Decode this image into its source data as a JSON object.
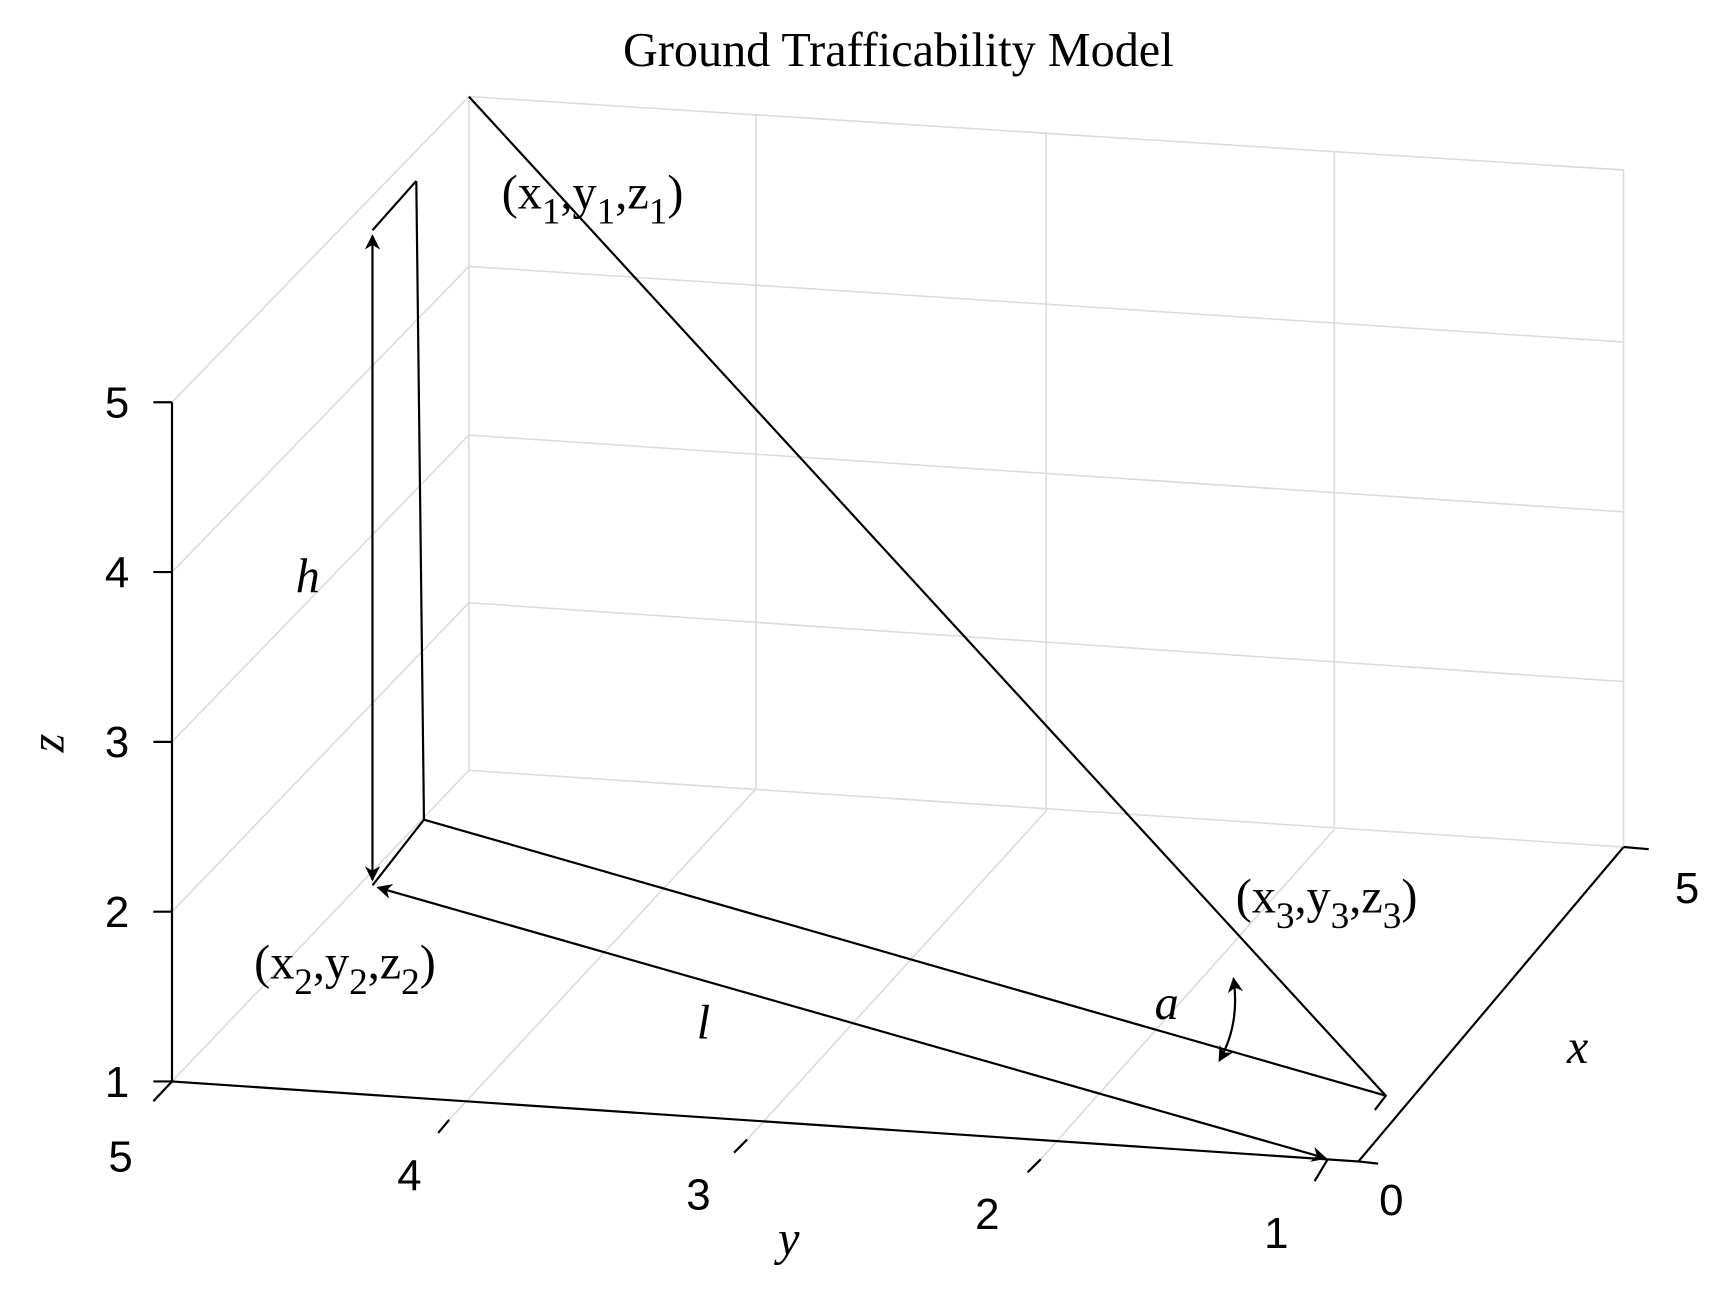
{
  "chart_data": {
    "type": "surface3d",
    "title": "Ground Trafficability Model",
    "xlabel": "x",
    "ylabel": "y",
    "zlabel": "z",
    "xticks": [
      0,
      5
    ],
    "yticks": [
      5,
      4,
      3,
      2,
      1
    ],
    "zticks": [
      1,
      2,
      3,
      4,
      5
    ],
    "annotations": [
      {
        "parts": [
          "(x",
          "1",
          ",y",
          "1",
          ",z",
          "1",
          ")"
        ]
      },
      {
        "parts": [
          "(x",
          "2",
          ",y",
          "2",
          ",z",
          "2",
          ")"
        ]
      },
      {
        "parts": [
          "(x",
          "3",
          ",y",
          "3",
          ",z",
          "3",
          ")"
        ]
      },
      {
        "parts": [
          "h"
        ]
      },
      {
        "parts": [
          "l"
        ]
      },
      {
        "parts": [
          "a"
        ]
      }
    ]
  }
}
